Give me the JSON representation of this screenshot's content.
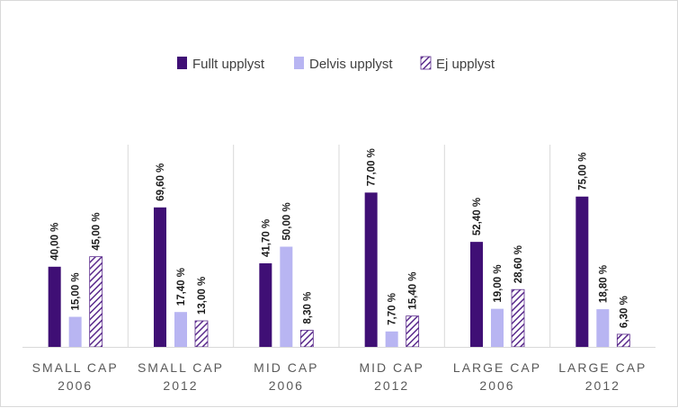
{
  "chart_data": {
    "type": "bar",
    "categories": [
      [
        "SMALL CAP",
        "2006"
      ],
      [
        "SMALL CAP",
        "2012"
      ],
      [
        "MID CAP",
        "2006"
      ],
      [
        "MID CAP",
        "2012"
      ],
      [
        "LARGE CAP",
        "2006"
      ],
      [
        "LARGE CAP",
        "2012"
      ]
    ],
    "series": [
      {
        "name": "Fullt upplyst",
        "color": "#3f0f75",
        "pattern": "solid",
        "values": [
          40.0,
          69.6,
          41.7,
          77.0,
          52.4,
          75.0
        ],
        "labels": [
          "40,00 %",
          "69,60 %",
          "41,70 %",
          "77,00 %",
          "52,40 %",
          "75,00 %"
        ]
      },
      {
        "name": "Delvis upplyst",
        "color": "#b8b5f2",
        "pattern": "solid",
        "values": [
          15.0,
          17.4,
          50.0,
          7.7,
          19.0,
          18.8
        ],
        "labels": [
          "15,00 %",
          "17,40 %",
          "50,00 %",
          "7,70 %",
          "19,00 %",
          "18,80 %"
        ]
      },
      {
        "name": "Ej upplyst",
        "color": "#5a2a8c",
        "pattern": "hatch",
        "values": [
          45.0,
          13.0,
          8.3,
          15.4,
          28.6,
          6.3
        ],
        "labels": [
          "45,00 %",
          "13,00 %",
          "8,30 %",
          "15,40 %",
          "28,60 %",
          "6,30 %"
        ]
      }
    ],
    "title": "",
    "xlabel": "",
    "ylabel": "",
    "ylim": [
      0,
      100
    ],
    "grid": false,
    "legend": "top-center"
  }
}
